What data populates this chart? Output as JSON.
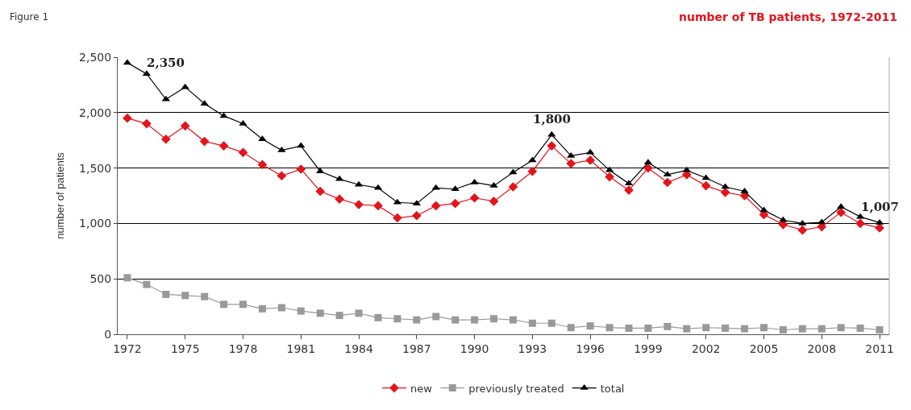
{
  "chart_data": {
    "type": "line",
    "title": "number of TB patients, 1972-2011",
    "ylabel": "number of patients",
    "x": [
      1972,
      1973,
      1974,
      1975,
      1976,
      1977,
      1978,
      1979,
      1980,
      1981,
      1982,
      1983,
      1984,
      1985,
      1986,
      1987,
      1988,
      1989,
      1990,
      1991,
      1992,
      1993,
      1994,
      1995,
      1996,
      1997,
      1998,
      1999,
      2000,
      2001,
      2002,
      2003,
      2004,
      2005,
      2006,
      2007,
      2008,
      2009,
      2010,
      2011
    ],
    "series": [
      {
        "name": "new",
        "color": "#e3141b",
        "marker": "diamond",
        "values": [
          1950,
          1900,
          1760,
          1880,
          1740,
          1700,
          1640,
          1530,
          1430,
          1490,
          1290,
          1220,
          1170,
          1160,
          1050,
          1070,
          1160,
          1180,
          1230,
          1200,
          1330,
          1470,
          1700,
          1540,
          1570,
          1420,
          1300,
          1500,
          1370,
          1440,
          1340,
          1280,
          1250,
          1080,
          990,
          940,
          970,
          1100,
          1000,
          960
        ]
      },
      {
        "name": "previously treated",
        "color": "#999999",
        "marker": "square",
        "values": [
          510,
          450,
          360,
          350,
          340,
          270,
          270,
          230,
          240,
          210,
          190,
          170,
          190,
          150,
          140,
          130,
          160,
          130,
          130,
          140,
          130,
          100,
          100,
          60,
          75,
          60,
          55,
          55,
          70,
          50,
          60,
          55,
          50,
          60,
          40,
          50,
          50,
          60,
          55,
          40
        ]
      },
      {
        "name": "total",
        "color": "#000000",
        "marker": "triangle",
        "values": [
          2450,
          2350,
          2120,
          2230,
          2080,
          1970,
          1900,
          1760,
          1660,
          1700,
          1470,
          1400,
          1350,
          1320,
          1190,
          1180,
          1320,
          1310,
          1370,
          1340,
          1460,
          1570,
          1800,
          1610,
          1640,
          1480,
          1360,
          1550,
          1440,
          1480,
          1410,
          1330,
          1290,
          1120,
          1030,
          1000,
          1010,
          1150,
          1060,
          1007
        ]
      }
    ],
    "annotations": [
      "Figure 1",
      {
        "text": "2,350",
        "x": 1973,
        "y": 2350
      },
      {
        "text": "1,800",
        "x": 1994,
        "y": 1800
      },
      {
        "text": "1,007",
        "x": 2011,
        "y": 1007
      }
    ],
    "xlim": [
      1971.5,
      2011.5
    ],
    "xticks": [
      1972,
      1975,
      1978,
      1981,
      1984,
      1987,
      1990,
      1993,
      1996,
      1999,
      2002,
      2005,
      2008,
      2011
    ],
    "ylim": [
      0,
      2500
    ],
    "yticks": [
      {
        "value": 0,
        "label": "0"
      },
      {
        "value": 500,
        "label": "500"
      },
      {
        "value": 1000,
        "label": "1,000"
      },
      {
        "value": 1500,
        "label": "1,500"
      },
      {
        "value": 2000,
        "label": "2,000"
      },
      {
        "value": 2500,
        "label": "2,500"
      }
    ],
    "grid": "y",
    "legend": "bottom",
    "line_style": "solid"
  }
}
